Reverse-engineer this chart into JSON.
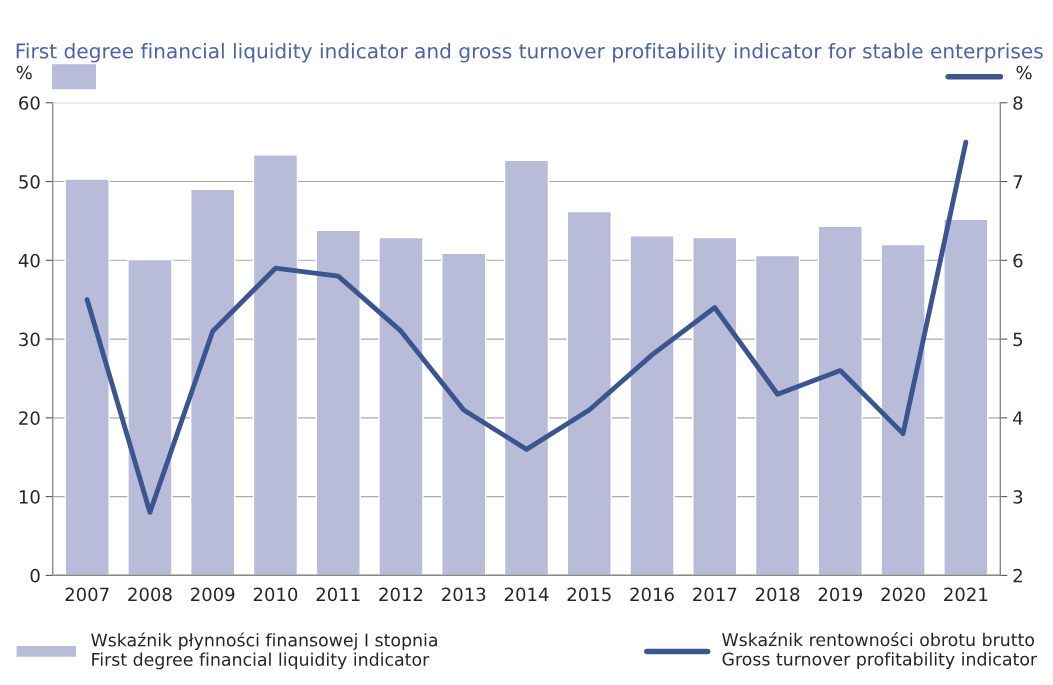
{
  "chart_data": {
    "type": "bar",
    "title": "First degree financial liquidity indicator and gross turnover profitability indicator for stable enterprises",
    "ylabel": "%",
    "y2label": "%",
    "categories": [
      "2007",
      "2008",
      "2009",
      "2010",
      "2011",
      "2012",
      "2013",
      "2014",
      "2015",
      "2016",
      "2017",
      "2018",
      "2019",
      "2020",
      "2021"
    ],
    "series": [
      {
        "name": "Wskaźnik płynności finansowej I stopnia\nFirst degree financial liquidity indicator",
        "color": "#b8bcd9",
        "values": [
          50.3,
          40.1,
          49.0,
          53.4,
          43.8,
          42.9,
          40.9,
          52.7,
          46.2,
          43.1,
          42.9,
          40.6,
          44.3,
          42.0,
          45.2
        ]
      },
      {
        "name": "Wskaźnik rentowności obrotu brutto\nGross turnover profitability indicator",
        "color": "#3a5590",
        "type": "line",
        "axis": "y2",
        "values": [
          5.5,
          2.8,
          5.1,
          5.9,
          5.8,
          5.1,
          4.1,
          3.6,
          4.1,
          4.8,
          5.4,
          4.3,
          4.6,
          3.8,
          7.5
        ]
      }
    ],
    "ylim": [
      0,
      60
    ],
    "yticks": [
      0,
      10,
      20,
      30,
      40,
      50,
      60
    ],
    "y2lim": [
      2,
      8
    ],
    "y2ticks": [
      2,
      3,
      4,
      5,
      6,
      7,
      8
    ],
    "grid": "y",
    "legend": "bottom",
    "marker": "none",
    "line_style": "solid"
  }
}
